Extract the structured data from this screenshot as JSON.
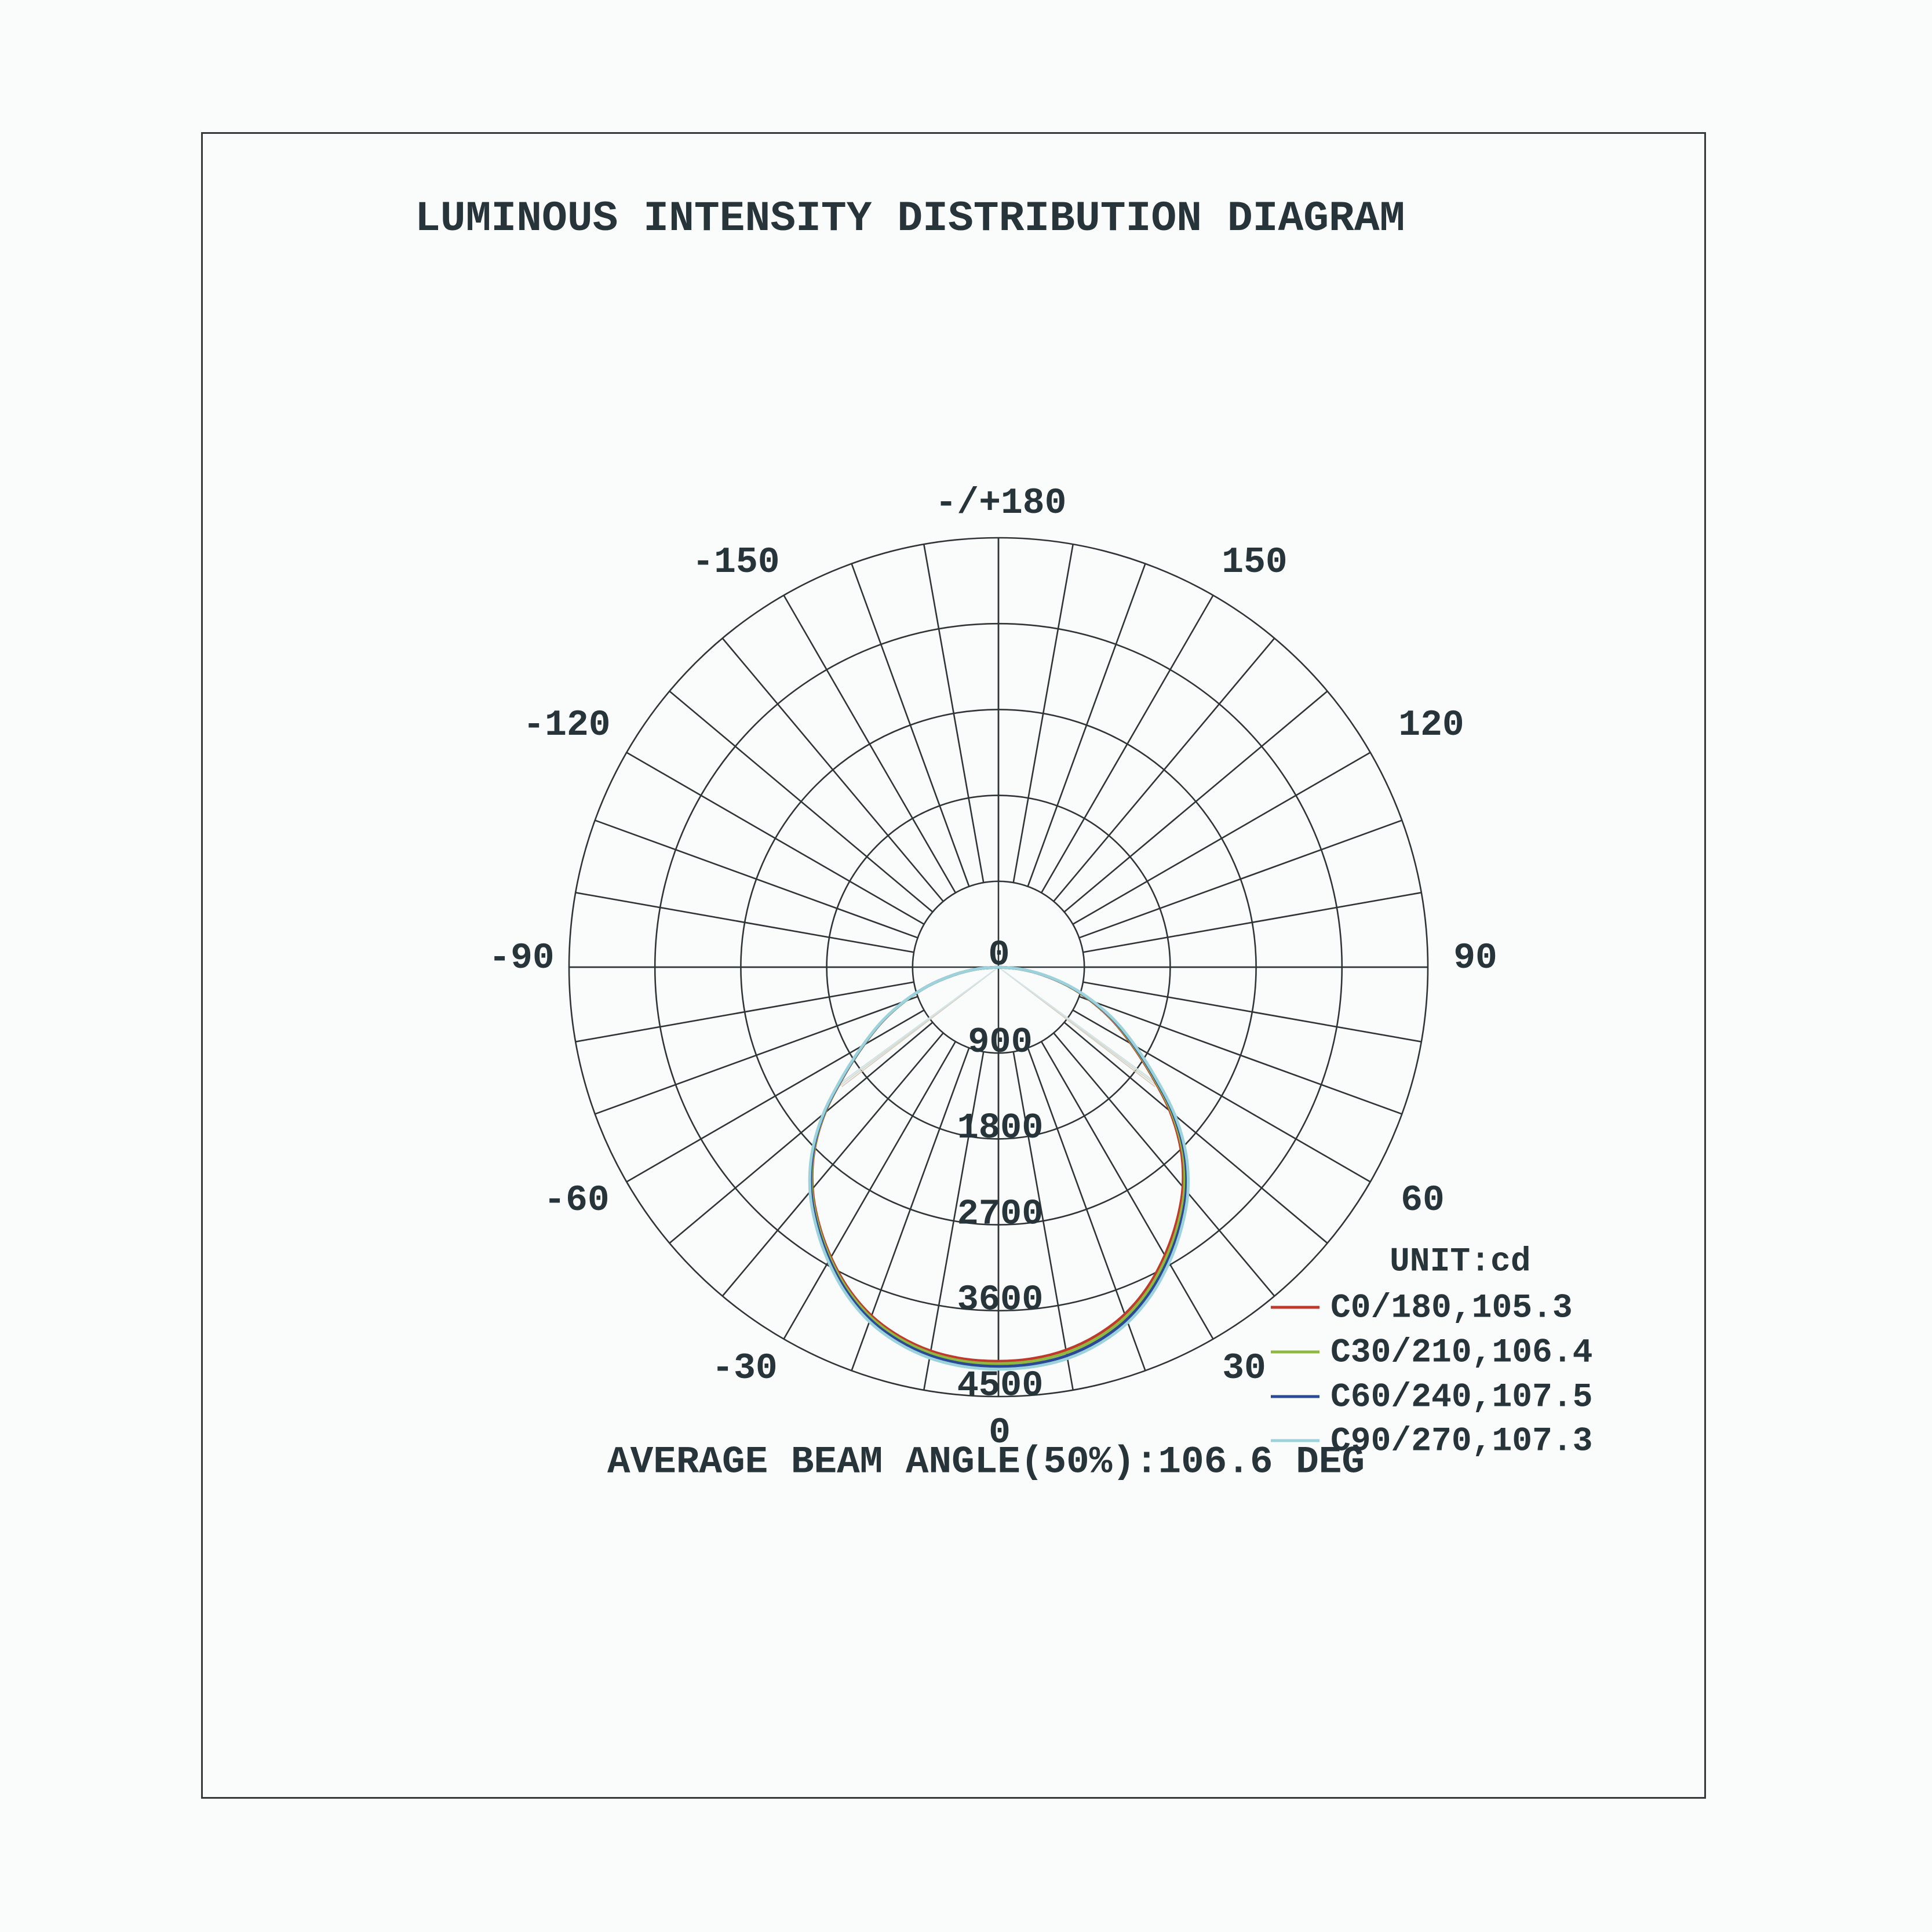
{
  "title": "LUMINOUS INTENSITY DISTRIBUTION DIAGRAM",
  "colors": {
    "background": "#f9fcfb",
    "frame": "#343a3c",
    "grid": "#2f3436",
    "text": "#27343a"
  },
  "legend": {
    "unit_label": "UNIT:cd"
  },
  "footer": {
    "text": "AVERAGE BEAM ANGLE(50%):106.6 DEG"
  },
  "chart_data": {
    "type": "line",
    "subtype": "polar-luminous-intensity",
    "title": "LUMINOUS INTENSITY DISTRIBUTION DIAGRAM",
    "unit": "cd",
    "grid": true,
    "rmax": 4500,
    "rings": [
      900,
      1800,
      2700,
      3600,
      4500
    ],
    "ring_labels": [
      "900",
      "1800",
      "2700",
      "3600",
      "4500"
    ],
    "center_label": "0",
    "spoke_step_deg": 10,
    "angle_label_step_deg": 30,
    "angle_labels": [
      {
        "deg": 0,
        "text": "0"
      },
      {
        "deg": 30,
        "text": "30"
      },
      {
        "deg": 60,
        "text": "60"
      },
      {
        "deg": 90,
        "text": "90"
      },
      {
        "deg": 120,
        "text": "120"
      },
      {
        "deg": 150,
        "text": "150"
      },
      {
        "deg": 180,
        "text": "-/+180"
      },
      {
        "deg": -30,
        "text": "-30"
      },
      {
        "deg": -60,
        "text": "-60"
      },
      {
        "deg": -90,
        "text": "-90"
      },
      {
        "deg": -120,
        "text": "-120"
      },
      {
        "deg": -150,
        "text": "-150"
      }
    ],
    "average_beam_angle_deg": 106.6,
    "angles_deg": [
      -90,
      -85,
      -80,
      -75,
      -70,
      -65,
      -60,
      -55,
      -50,
      -45,
      -40,
      -35,
      -30,
      -25,
      -20,
      -15,
      -10,
      -5,
      0,
      5,
      10,
      15,
      20,
      25,
      30,
      35,
      40,
      45,
      50,
      55,
      60,
      65,
      70,
      75,
      80,
      85,
      90
    ],
    "series": [
      {
        "name": "C0/180,105.3",
        "plane": "C0/180",
        "beam_angle_deg": 105.3,
        "color": "#c03a2c",
        "beam_line_color": "#d9cfc9",
        "values": [
          0,
          232,
          484,
          766,
          1048,
          1340,
          1631,
          1972,
          2373,
          2734,
          3033,
          3283,
          3512,
          3720,
          3889,
          4007,
          4085,
          4122,
          4130,
          4118,
          4075,
          3993,
          3871,
          3700,
          3488,
          3257,
          3007,
          2706,
          2347,
          1948,
          1609,
          1320,
          1032,
          754,
          476,
          228,
          0
        ]
      },
      {
        "name": "C30/210,106.4",
        "plane": "C30/210",
        "beam_angle_deg": 106.4,
        "color": "#8fb841",
        "beam_line_color": "#d6dcc8",
        "values": [
          0,
          232,
          485,
          767,
          1049,
          1342,
          1634,
          1977,
          2379,
          2742,
          3044,
          3295,
          3526,
          3736,
          3907,
          4027,
          4106,
          4146,
          4155,
          4144,
          4102,
          4021,
          3900,
          3728,
          3516,
          3285,
          3033,
          2731,
          2369,
          1967,
          1626,
          1334,
          1043,
          762,
          481,
          230,
          0
        ]
      },
      {
        "name": "C60/240,107.5",
        "plane": "C60/240",
        "beam_angle_deg": 107.5,
        "color": "#2a4a96",
        "beam_line_color": "#c8cfdf",
        "values": [
          0,
          233,
          485,
          769,
          1052,
          1345,
          1639,
          1983,
          2388,
          2752,
          3056,
          3310,
          3543,
          3756,
          3929,
          4051,
          4132,
          4173,
          4184,
          4174,
          4134,
          4053,
          3932,
          3760,
          3548,
          3315,
          3062,
          2758,
          2394,
          1988,
          1643,
          1349,
          1055,
          771,
          487,
          233,
          0
        ]
      },
      {
        "name": "C90/270,107.3",
        "plane": "C90/270",
        "beam_angle_deg": 107.3,
        "color": "#9bd2dc",
        "beam_line_color": "#d4e6e9",
        "values": [
          0,
          233,
          487,
          771,
          1056,
          1351,
          1645,
          1992,
          2399,
          2766,
          3072,
          3327,
          3563,
          3778,
          3953,
          4076,
          4159,
          4201,
          4213,
          4203,
          4165,
          4084,
          3963,
          3790,
          3577,
          3343,
          3088,
          2782,
          2415,
          2006,
          1659,
          1363,
          1066,
          779,
          493,
          236,
          0
        ]
      }
    ]
  }
}
